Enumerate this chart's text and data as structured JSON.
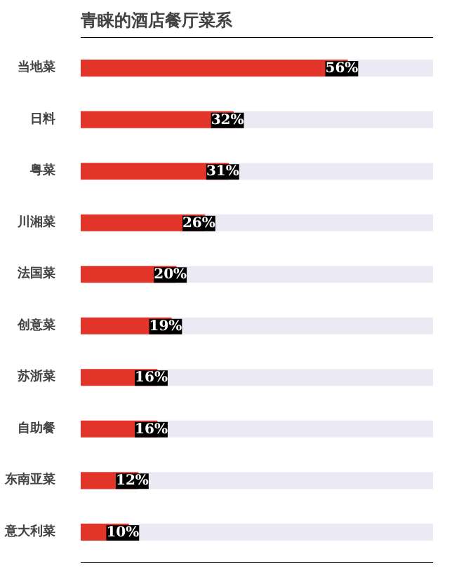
{
  "chart_data": {
    "type": "bar",
    "orientation": "horizontal",
    "title": "青睐的酒店餐厅菜系",
    "categories": [
      "当地菜",
      "日料",
      "粤菜",
      "川湘菜",
      "法国菜",
      "创意菜",
      "苏浙菜",
      "自助餐",
      "东南亚菜",
      "意大利菜"
    ],
    "values": [
      56,
      32,
      31,
      26,
      20,
      19,
      16,
      16,
      12,
      10
    ],
    "value_labels": [
      "56%",
      "32%",
      "31%",
      "26%",
      "20%",
      "19%",
      "16%",
      "16%",
      "12%",
      "10%"
    ],
    "color": "#e3342a",
    "xlim": [
      0,
      74
    ],
    "tick_labels": "y",
    "grid": false
  }
}
